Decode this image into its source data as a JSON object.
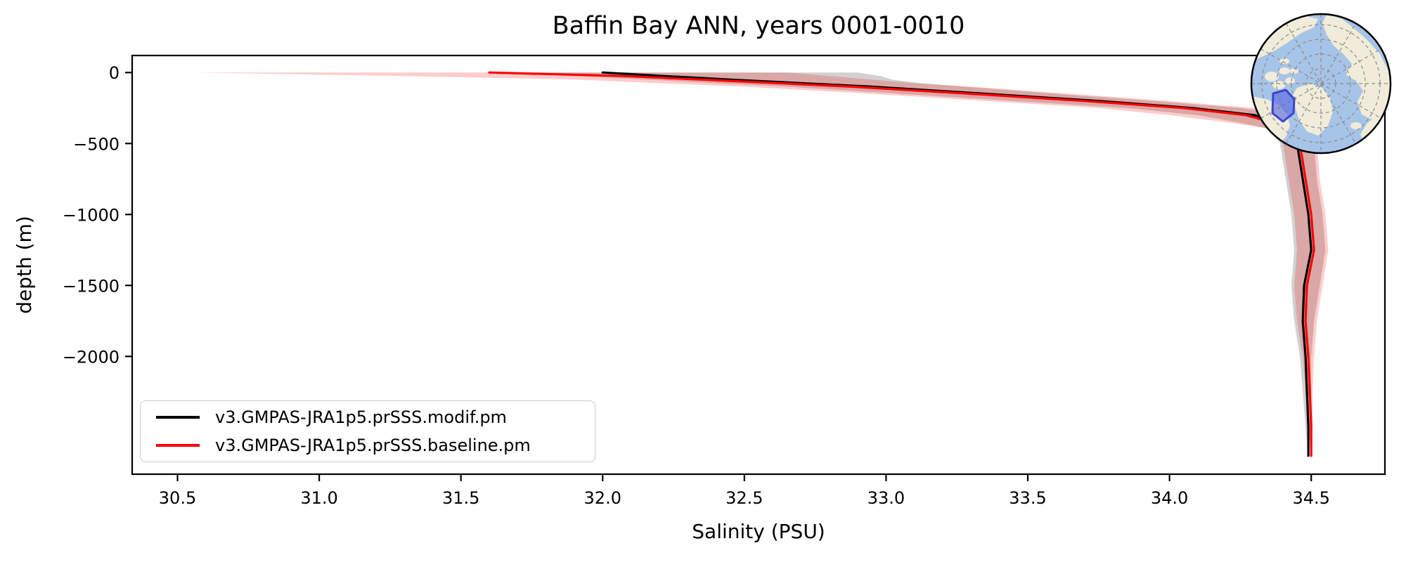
{
  "title": "Baffin Bay ANN, years 0001-0010",
  "chart_data": {
    "type": "line",
    "title": "Baffin Bay ANN, years 0001-0010",
    "xlabel": "Salinity (PSU)",
    "ylabel": "depth (m)",
    "xlim": [
      30.34,
      34.76
    ],
    "ylim": [
      -2830,
      120
    ],
    "grid": false,
    "legend_position": "lower left",
    "x_ticks": {
      "labels": [
        "30.5",
        "31.0",
        "31.5",
        "32.0",
        "32.5",
        "33.0",
        "33.5",
        "34.0",
        "34.5"
      ],
      "values": [
        30.5,
        31.0,
        31.5,
        32.0,
        32.5,
        33.0,
        33.5,
        34.0,
        34.5
      ]
    },
    "y_ticks": {
      "labels": [
        "0",
        "−500",
        "−1000",
        "−1500",
        "−2000"
      ],
      "values": [
        0,
        -500,
        -1000,
        -1500,
        -2000
      ]
    },
    "depth": [
      0,
      -25,
      -50,
      -75,
      -100,
      -150,
      -200,
      -250,
      -300,
      -350,
      -400,
      -500,
      -750,
      -1000,
      -1250,
      -1500,
      -1750,
      -2000,
      -2250,
      -2500,
      -2700
    ],
    "series": [
      {
        "name": "v3.GMPAS-JRA1p5.prSSS.modif.pm",
        "color": "#000000",
        "band_color": "rgba(0,0,0,0.18)",
        "salinity": [
          32.0,
          32.22,
          32.45,
          32.7,
          32.95,
          33.35,
          33.75,
          34.08,
          34.3,
          34.38,
          34.41,
          34.45,
          34.47,
          34.49,
          34.5,
          34.475,
          34.47,
          34.48,
          34.485,
          34.49,
          34.49
        ],
        "band_lo": [
          31.6,
          31.9,
          32.15,
          32.4,
          32.65,
          33.05,
          33.45,
          33.85,
          34.1,
          34.24,
          34.36,
          34.39,
          34.41,
          34.43,
          34.44,
          34.43,
          34.44,
          34.46,
          34.47,
          34.48,
          34.49
        ],
        "band_hi": [
          32.9,
          32.98,
          33.02,
          33.12,
          33.28,
          33.6,
          33.95,
          34.25,
          34.42,
          34.47,
          34.49,
          34.51,
          34.52,
          34.54,
          34.55,
          34.53,
          34.51,
          34.5,
          34.5,
          34.5,
          34.49
        ]
      },
      {
        "name": "v3.GMPAS-JRA1p5.prSSS.baseline.pm",
        "color": "#ff0000",
        "band_color": "rgba(255,0,0,0.20)",
        "salinity": [
          31.6,
          32.08,
          32.35,
          32.62,
          32.88,
          33.3,
          33.7,
          34.05,
          34.27,
          34.36,
          34.42,
          34.46,
          34.48,
          34.5,
          34.51,
          34.485,
          34.48,
          34.49,
          34.495,
          34.5,
          34.5
        ],
        "band_lo": [
          30.55,
          31.3,
          31.9,
          32.2,
          32.5,
          32.95,
          33.35,
          33.75,
          34.0,
          34.2,
          34.37,
          34.4,
          34.42,
          34.44,
          34.45,
          34.44,
          34.45,
          34.47,
          34.48,
          34.49,
          34.5
        ],
        "band_hi": [
          32.65,
          32.8,
          32.95,
          33.1,
          33.3,
          33.65,
          34.0,
          34.3,
          34.46,
          34.49,
          34.5,
          34.52,
          34.53,
          34.55,
          34.56,
          34.54,
          34.52,
          34.51,
          34.505,
          34.505,
          34.5
        ]
      }
    ]
  },
  "inset_map": {
    "description": "arctic-polar-stereographic-locator-globe",
    "highlight_region": "Baffin Bay",
    "colors": {
      "ocean": "#a6c4e8",
      "land": "#f0ecd9",
      "graticule": "#8a8a8a",
      "highlight_fill": "#5b66e0",
      "highlight_edge": "#3d43cf",
      "border": "#000000"
    }
  }
}
